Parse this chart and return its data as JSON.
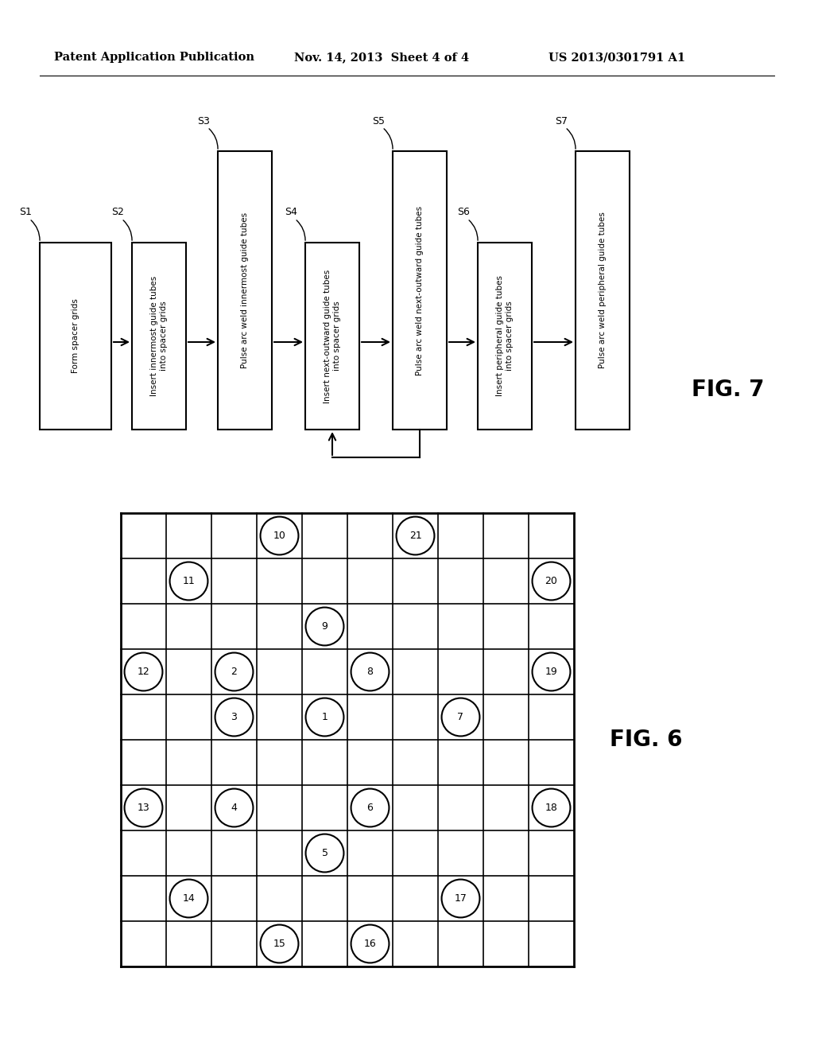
{
  "header_left": "Patent Application Publication",
  "header_mid": "Nov. 14, 2013  Sheet 4 of 4",
  "header_right": "US 2013/0301791 A1",
  "fig7_label": "FIG. 7",
  "fig6_label": "FIG. 6",
  "flowchart_steps": [
    {
      "id": "S1",
      "text": "Form spacer grids",
      "tall": false
    },
    {
      "id": "S2",
      "text": "Insert innermost guide tubes\ninto spacer grids",
      "tall": false
    },
    {
      "id": "S3",
      "text": "Pulse arc weld innermost guide tubes",
      "tall": true
    },
    {
      "id": "S4",
      "text": "Insert next-outward guide tubes\ninto spacer grids",
      "tall": false
    },
    {
      "id": "S5",
      "text": "Pulse arc weld next-outward guide tubes",
      "tall": true
    },
    {
      "id": "S6",
      "text": "Insert peripheral guide tubes\ninto spacer grids",
      "tall": false
    },
    {
      "id": "S7",
      "text": "Pulse arc weld peripheral guide tubes",
      "tall": true
    }
  ],
  "grid_cols": 11,
  "grid_rows": 10,
  "circles": [
    {
      "num": 1,
      "col": 4,
      "row": 5
    },
    {
      "num": 2,
      "col": 2,
      "row": 4
    },
    {
      "num": 3,
      "col": 2,
      "row": 5
    },
    {
      "num": 4,
      "col": 2,
      "row": 7
    },
    {
      "num": 5,
      "col": 4,
      "row": 8
    },
    {
      "num": 6,
      "col": 5,
      "row": 7
    },
    {
      "num": 7,
      "col": 7,
      "row": 5
    },
    {
      "num": 8,
      "col": 5,
      "row": 4
    },
    {
      "num": 9,
      "col": 4,
      "row": 3
    },
    {
      "num": 10,
      "col": 3,
      "row": 1
    },
    {
      "num": 11,
      "col": 1,
      "row": 2
    },
    {
      "num": 12,
      "col": 0,
      "row": 4
    },
    {
      "num": 13,
      "col": 0,
      "row": 7
    },
    {
      "num": 14,
      "col": 1,
      "row": 9
    },
    {
      "num": 15,
      "col": 3,
      "row": 10
    },
    {
      "num": 16,
      "col": 5,
      "row": 10
    },
    {
      "num": 17,
      "col": 7,
      "row": 9
    },
    {
      "num": 18,
      "col": 9,
      "row": 7
    },
    {
      "num": 19,
      "col": 9,
      "row": 4
    },
    {
      "num": 20,
      "col": 9,
      "row": 2
    },
    {
      "num": 21,
      "col": 6,
      "row": 1
    }
  ]
}
